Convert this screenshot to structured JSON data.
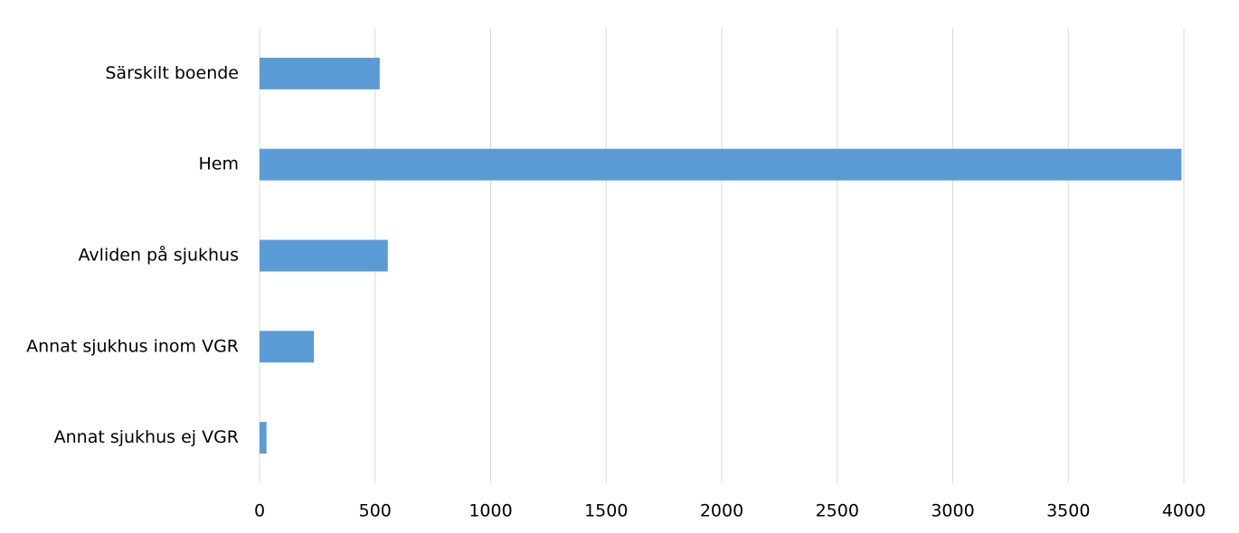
{
  "chart_data": {
    "type": "bar",
    "orientation": "horizontal",
    "categories": [
      "Särskilt boende",
      "Hem",
      "Avliden på sjukhus",
      "Annat sjukhus inom VGR",
      "Annat sjukhus ej VGR"
    ],
    "values": [
      520,
      3990,
      555,
      235,
      30
    ],
    "color": "#5b9bd5",
    "xlim": [
      0,
      4000
    ],
    "xticks": [
      0,
      500,
      1000,
      1500,
      2000,
      2500,
      3000,
      3500,
      4000
    ],
    "grid": true
  }
}
